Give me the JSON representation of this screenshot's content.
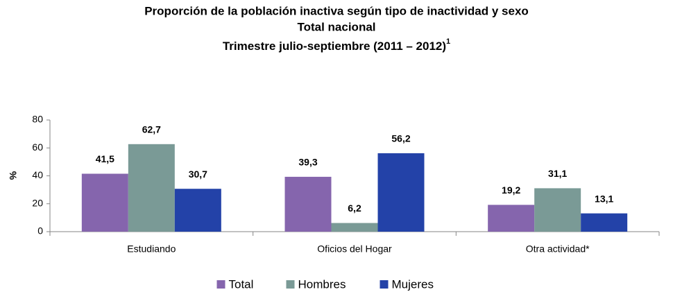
{
  "chart_data": {
    "type": "bar",
    "title": [
      "Proporción de la población inactiva según tipo de inactividad y sexo",
      "Total nacional",
      "Trimestre julio-septiembre (2011 – 2012)"
    ],
    "title_superscript": "1",
    "ylabel": "%",
    "categories": [
      "Estudiando",
      "Oficios del Hogar",
      "Otra actividad*"
    ],
    "series": [
      {
        "name": "Total",
        "color": "#8565ad",
        "values": [
          41.5,
          39.3,
          19.2
        ],
        "value_labels": [
          "41,5",
          "39,3",
          "19,2"
        ]
      },
      {
        "name": "Hombres",
        "color": "#7a9a96",
        "values": [
          62.7,
          6.2,
          31.1
        ],
        "value_labels": [
          "62,7",
          "6,2",
          "31,1"
        ]
      },
      {
        "name": "Mujeres",
        "color": "#2342a8",
        "values": [
          30.7,
          56.2,
          13.1
        ],
        "value_labels": [
          "30,7",
          "56,2",
          "13,1"
        ]
      }
    ],
    "ylim": [
      0,
      80
    ],
    "yticks": [
      0,
      20,
      40,
      60,
      80
    ],
    "grid": false,
    "legend": "bottom"
  }
}
